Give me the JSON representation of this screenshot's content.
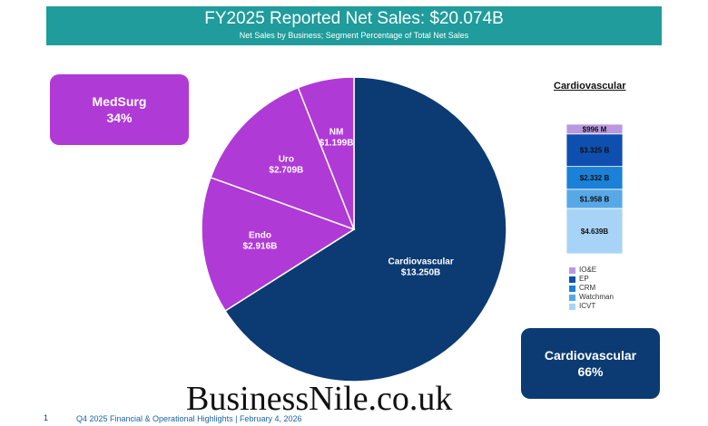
{
  "banner": {
    "title": "FY2025 Reported Net Sales: $20.074B",
    "subtitle": "Net Sales by Business; Segment Percentage of Total Net Sales"
  },
  "callouts": {
    "medsurg_name": "MedSurg",
    "medsurg_pct": "34%",
    "cardio_name": "Cardiovascular",
    "cardio_pct": "66%"
  },
  "footer": {
    "page_number": "1",
    "text": "Q4 2025 Financial & Operational Highlights | February 4, 2026"
  },
  "watermark": "BusinessNile.co.uk",
  "colors": {
    "banner": "#1f9c9b",
    "medsurg": "#b03ad6",
    "cardiovascular": "#0b3b72",
    "stack": [
      "#b998e0",
      "#0f4fb0",
      "#1a80d8",
      "#58a8e6",
      "#a7d4f6"
    ]
  },
  "chart_data": [
    {
      "type": "pie",
      "title": "FY2025 Reported Net Sales: $20.074B",
      "slices": [
        {
          "name": "Cardiovascular",
          "label": "$13.250B",
          "value": 13.25,
          "color": "#0b3b72"
        },
        {
          "name": "Endo",
          "label": "$2.916B",
          "value": 2.916,
          "color": "#b03ad6"
        },
        {
          "name": "Uro",
          "label": "$2.709B",
          "value": 2.709,
          "color": "#b03ad6"
        },
        {
          "name": "NM",
          "label": "$1.199B",
          "value": 1.199,
          "color": "#b03ad6"
        }
      ],
      "start_angle": "12 o'clock",
      "direction": "clockwise"
    },
    {
      "type": "bar",
      "title": "Cardiovascular",
      "stacked": true,
      "categories": [
        "Cardiovascular"
      ],
      "series": [
        {
          "name": "ICVT",
          "label": "$4.639B",
          "values": [
            4.639
          ],
          "color": "#a7d4f6"
        },
        {
          "name": "Watchman",
          "label": "$1.958 B",
          "values": [
            1.958
          ],
          "color": "#58a8e6"
        },
        {
          "name": "CRM",
          "label": "$2.332 B",
          "values": [
            2.332
          ],
          "color": "#1a80d8"
        },
        {
          "name": "EP",
          "label": "$3.325 B",
          "values": [
            3.325
          ],
          "color": "#0f4fb0"
        },
        {
          "name": "IO&E",
          "label": "$996 M",
          "values": [
            0.996
          ],
          "color": "#b998e0"
        }
      ],
      "legend_position": "below",
      "legend_order": [
        "IO&E",
        "EP",
        "CRM",
        "Watchman",
        "ICVT"
      ]
    }
  ]
}
